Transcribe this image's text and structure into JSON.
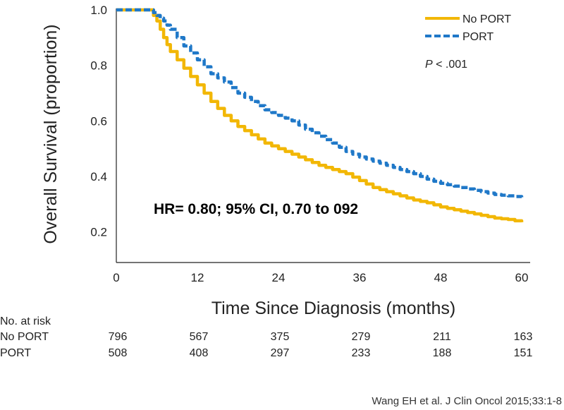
{
  "chart_data": {
    "type": "line",
    "xlabel": "Time Since Diagnosis (months)",
    "ylabel": "Overall Survival (proportion)",
    "xlim": [
      0,
      60
    ],
    "ylim": [
      0.1,
      1.0
    ],
    "x_ticks": [
      "0",
      "12",
      "24",
      "36",
      "48",
      "60"
    ],
    "x_tick_values": [
      0,
      12,
      24,
      36,
      48,
      60
    ],
    "y_ticks": [
      "0.2",
      "0.4",
      "0.6",
      "0.8",
      "1.0"
    ],
    "y_tick_values": [
      0.2,
      0.4,
      0.6,
      0.8,
      1.0
    ],
    "legend_position": "top-right",
    "grid": false,
    "series": [
      {
        "name": "No PORT",
        "color": "#F2B705",
        "style": "solid",
        "x": [
          0,
          5,
          6,
          7,
          8,
          10,
          12,
          14,
          16,
          18,
          20,
          22,
          24,
          26,
          28,
          30,
          32,
          34,
          36,
          38,
          40,
          42,
          44,
          46,
          48,
          50,
          52,
          54,
          56,
          58,
          60
        ],
        "y": [
          1.0,
          1.0,
          0.96,
          0.9,
          0.85,
          0.79,
          0.73,
          0.67,
          0.62,
          0.58,
          0.55,
          0.52,
          0.5,
          0.48,
          0.46,
          0.44,
          0.425,
          0.41,
          0.385,
          0.36,
          0.345,
          0.33,
          0.315,
          0.305,
          0.29,
          0.28,
          0.27,
          0.26,
          0.25,
          0.245,
          0.235
        ]
      },
      {
        "name": "PORT",
        "color": "#1F78C8",
        "style": "dashed",
        "x": [
          0,
          5,
          6,
          7,
          8,
          10,
          12,
          14,
          16,
          18,
          20,
          22,
          24,
          26,
          28,
          30,
          32,
          34,
          36,
          38,
          40,
          42,
          44,
          46,
          48,
          50,
          52,
          54,
          56,
          58,
          60
        ],
        "y": [
          1.0,
          1.0,
          0.98,
          0.96,
          0.93,
          0.87,
          0.82,
          0.77,
          0.74,
          0.7,
          0.67,
          0.64,
          0.62,
          0.6,
          0.57,
          0.545,
          0.52,
          0.49,
          0.47,
          0.455,
          0.44,
          0.425,
          0.41,
          0.39,
          0.375,
          0.365,
          0.355,
          0.345,
          0.335,
          0.33,
          0.325
        ]
      }
    ],
    "annotations": {
      "p_value_italic": "P",
      "p_value_rest": " < .001",
      "hazard_ratio": "HR= 0.80; 95% CI, 0.70 to 092"
    },
    "risk_table": {
      "title": "No. at risk",
      "rows": [
        {
          "label": "No PORT",
          "values": [
            "796",
            "567",
            "375",
            "279",
            "211",
            "163"
          ]
        },
        {
          "label": "PORT",
          "values": [
            "508",
            "408",
            "297",
            "233",
            "188",
            "151"
          ]
        }
      ]
    }
  },
  "citation": "Wang EH et al. J Clin Oncol 2015;33:1-8"
}
